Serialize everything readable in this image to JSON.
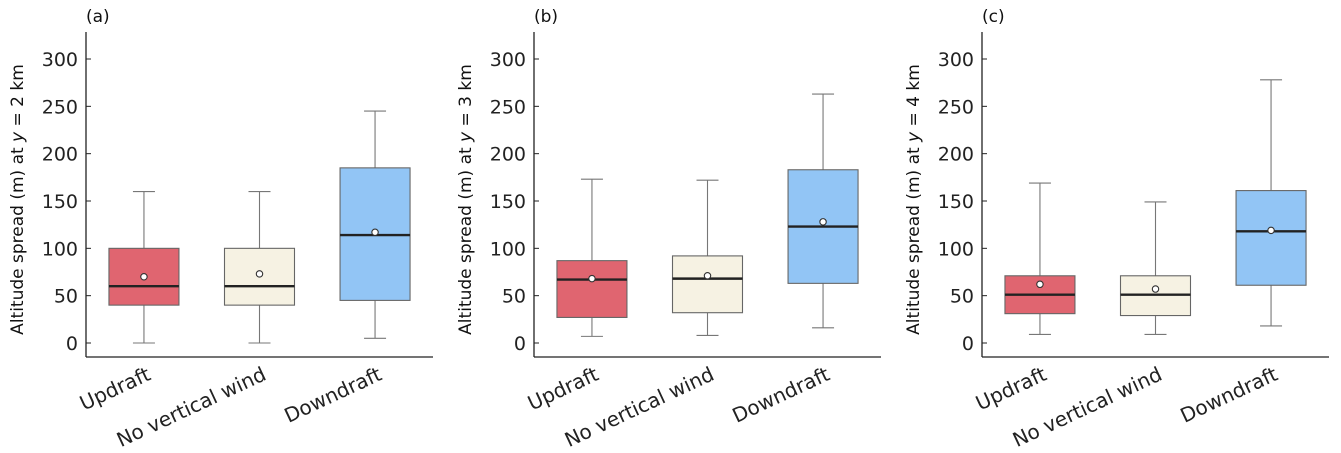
{
  "chart_data": [
    {
      "type": "box",
      "panel_label": "(a)",
      "ylabel_parts": [
        "Altitude spread (m) at ",
        "y",
        " = 2 km"
      ],
      "ylim": [
        -15,
        330
      ],
      "yticks": [
        0,
        50,
        100,
        150,
        200,
        250,
        300
      ],
      "categories": [
        "Updraft",
        "No vertical wind",
        "Downdraft"
      ],
      "colors": [
        "#e06570",
        "#f6f2e3",
        "#92c5f5"
      ],
      "boxes": [
        {
          "whislo": 0,
          "q1": 40,
          "median": 60,
          "q3": 100,
          "whishi": 160,
          "mean": 70
        },
        {
          "whislo": 0,
          "q1": 40,
          "median": 60,
          "q3": 100,
          "whishi": 160,
          "mean": 73
        },
        {
          "whislo": 5,
          "q1": 45,
          "median": 114,
          "q3": 185,
          "whishi": 245,
          "mean": 117
        }
      ]
    },
    {
      "type": "box",
      "panel_label": "(b)",
      "ylabel_parts": [
        "Altitude spread (m) at ",
        "y",
        " = 3 km"
      ],
      "ylim": [
        -15,
        330
      ],
      "yticks": [
        0,
        50,
        100,
        150,
        200,
        250,
        300
      ],
      "categories": [
        "Updraft",
        "No vertical wind",
        "Downdraft"
      ],
      "colors": [
        "#e06570",
        "#f6f2e3",
        "#92c5f5"
      ],
      "boxes": [
        {
          "whislo": 7,
          "q1": 27,
          "median": 67,
          "q3": 87,
          "whishi": 173,
          "mean": 68
        },
        {
          "whislo": 8,
          "q1": 32,
          "median": 68,
          "q3": 92,
          "whishi": 172,
          "mean": 71
        },
        {
          "whislo": 16,
          "q1": 63,
          "median": 123,
          "q3": 183,
          "whishi": 263,
          "mean": 128
        }
      ]
    },
    {
      "type": "box",
      "panel_label": "(c)",
      "ylabel_parts": [
        "Altitude spread (m) at ",
        "y",
        " = 4 km"
      ],
      "ylim": [
        -15,
        330
      ],
      "yticks": [
        0,
        50,
        100,
        150,
        200,
        250,
        300
      ],
      "categories": [
        "Updraft",
        "No vertical wind",
        "Downdraft"
      ],
      "colors": [
        "#e06570",
        "#f6f2e3",
        "#92c5f5"
      ],
      "boxes": [
        {
          "whislo": 9,
          "q1": 31,
          "median": 51,
          "q3": 71,
          "whishi": 169,
          "mean": 62
        },
        {
          "whislo": 9,
          "q1": 29,
          "median": 51,
          "q3": 71,
          "whishi": 149,
          "mean": 57
        },
        {
          "whislo": 18,
          "q1": 61,
          "median": 118,
          "q3": 161,
          "whishi": 278,
          "mean": 119
        }
      ]
    }
  ]
}
